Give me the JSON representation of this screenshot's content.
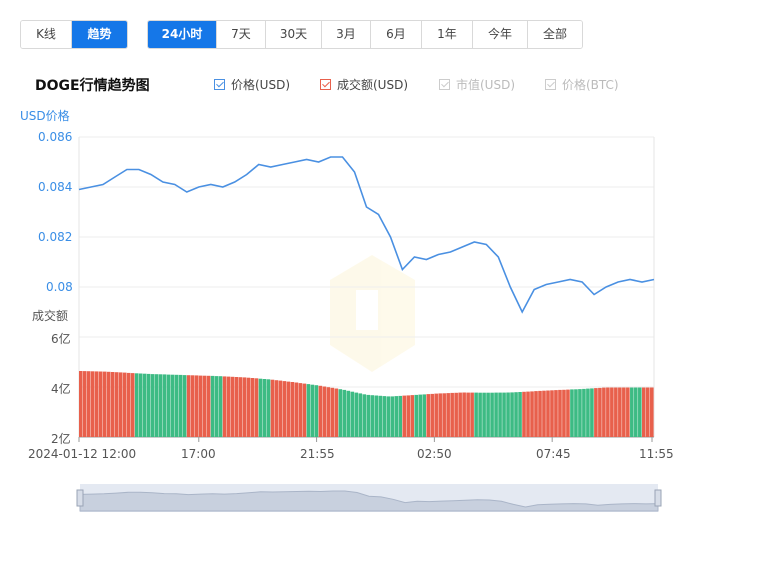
{
  "period_tabs": [
    {
      "label": "K线",
      "active": false
    },
    {
      "label": "趋势",
      "active": true
    }
  ],
  "range_tabs": [
    {
      "label": "24小时",
      "active": true
    },
    {
      "label": "7天",
      "active": false
    },
    {
      "label": "30天",
      "active": false
    },
    {
      "label": "3月",
      "active": false
    },
    {
      "label": "6月",
      "active": false
    },
    {
      "label": "1年",
      "active": false
    },
    {
      "label": "今年",
      "active": false
    },
    {
      "label": "全部",
      "active": false
    }
  ],
  "chart_title": "DOGE行情趋势图",
  "legend": [
    {
      "label": "价格(USD)",
      "checked": true,
      "color": "#4a90e2"
    },
    {
      "label": "成交额(USD)",
      "checked": true,
      "color": "#e8604c"
    },
    {
      "label": "市值(USD)",
      "checked": false,
      "color": "#cccccc"
    },
    {
      "label": "价格(BTC)",
      "checked": false,
      "color": "#cccccc"
    }
  ],
  "colors": {
    "price_line": "#4a90e2",
    "volume_up": "#e8604c",
    "volume_down": "#3dbb84",
    "accent": "#1577e8"
  },
  "chart_data": {
    "type": "line",
    "price_axis_label": "USD价格",
    "volume_axis_label": "成交额",
    "price_ticks": [
      "0.086",
      "0.084",
      "0.082",
      "0.08"
    ],
    "price_ylim": [
      0.08,
      0.086
    ],
    "volume_ticks": [
      "6亿",
      "4亿",
      "2亿"
    ],
    "volume_ylim": [
      200000000,
      600000000
    ],
    "x_ticks": [
      "2024-01-12 12:00",
      "17:00",
      "21:55",
      "02:50",
      "07:45",
      "11:55"
    ],
    "price_series": {
      "name": "价格(USD)",
      "x_hours": [
        0,
        0.5,
        1,
        1.5,
        2,
        2.5,
        3,
        3.5,
        4,
        4.5,
        5,
        5.5,
        6,
        6.5,
        7,
        7.5,
        8,
        8.5,
        9,
        9.5,
        10,
        10.5,
        11,
        11.5,
        12,
        12.5,
        13,
        13.5,
        14,
        14.5,
        15,
        15.5,
        16,
        16.5,
        17,
        17.5,
        18,
        18.5,
        19,
        19.5,
        20,
        20.5,
        21,
        21.5,
        22,
        22.5,
        23,
        23.5,
        24
      ],
      "values": [
        0.0839,
        0.084,
        0.0841,
        0.0844,
        0.0847,
        0.0847,
        0.0845,
        0.0842,
        0.0841,
        0.0838,
        0.084,
        0.0841,
        0.084,
        0.0842,
        0.0845,
        0.0849,
        0.0848,
        0.0849,
        0.085,
        0.0851,
        0.085,
        0.0852,
        0.0852,
        0.0846,
        0.0832,
        0.0829,
        0.082,
        0.0807,
        0.0812,
        0.0811,
        0.0813,
        0.0814,
        0.0816,
        0.0818,
        0.0817,
        0.0812,
        0.08,
        0.079,
        0.0799,
        0.0801,
        0.0802,
        0.0803,
        0.0802,
        0.0797,
        0.08,
        0.0802,
        0.0803,
        0.0802,
        0.0803
      ]
    },
    "volume_series": {
      "name": "成交额(USD)",
      "x_hours": [
        0,
        1,
        2,
        3,
        4,
        5,
        6,
        7,
        8,
        9,
        10,
        11,
        12,
        13,
        14,
        15,
        16,
        17,
        18,
        19,
        20,
        21,
        22,
        23,
        24
      ],
      "values": [
        464000000,
        462000000,
        457000000,
        452000000,
        449000000,
        446000000,
        443000000,
        438000000,
        430000000,
        419000000,
        406000000,
        390000000,
        369000000,
        362000000,
        368000000,
        374000000,
        378000000,
        377000000,
        378000000,
        383000000,
        388000000,
        392000000,
        398000000,
        398000000,
        398000000
      ]
    }
  }
}
